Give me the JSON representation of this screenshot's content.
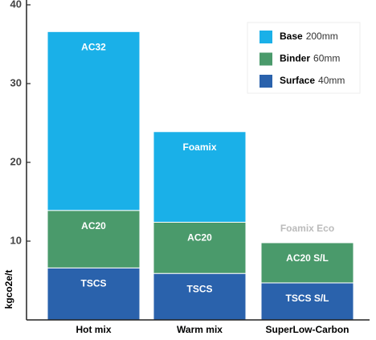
{
  "chart_data": {
    "type": "stacked_bar",
    "y_label": "kgco2e/t",
    "categories": [
      "Hot mix",
      "Warm mix",
      "SuperLow-Carbon"
    ],
    "series": [
      {
        "name": "Surface",
        "thickness": "40mm",
        "color": "#2a62ac",
        "values": [
          6.6,
          5.9,
          4.7
        ],
        "labels": [
          "TSCS",
          "TSCS",
          "TSCS S/L"
        ]
      },
      {
        "name": "Binder",
        "thickness": "60mm",
        "color": "#4a9a6b",
        "values": [
          7.3,
          6.5,
          5.1
        ],
        "labels": [
          "AC20",
          "AC20",
          "AC20 S/L"
        ]
      },
      {
        "name": "Base",
        "thickness": "200mm",
        "color": "#1ab0e8",
        "values": [
          22.7,
          11.5,
          null
        ],
        "labels": [
          "AC32",
          "Foamix",
          "Foamix Eco"
        ]
      }
    ],
    "ylim": [
      0,
      40
    ],
    "yticks": [
      10,
      20,
      30,
      40
    ]
  }
}
